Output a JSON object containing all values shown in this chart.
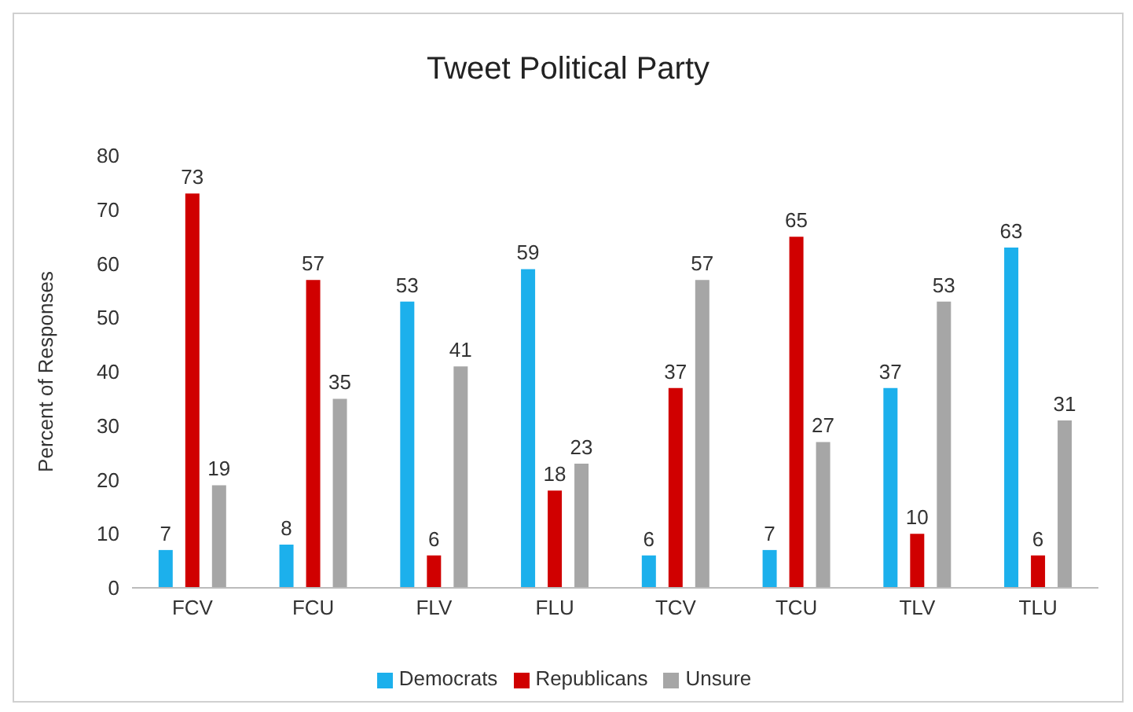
{
  "chart_data": {
    "type": "bar",
    "title": "Tweet Political Party",
    "ylabel": "Percent of Responses",
    "categories": [
      "FCV",
      "FCU",
      "FLV",
      "FLU",
      "TCV",
      "TCU",
      "TLV",
      "TLU"
    ],
    "series": [
      {
        "name": "Democrats",
        "color": "#1cb0ec",
        "values": [
          7,
          8,
          53,
          59,
          6,
          7,
          37,
          63
        ]
      },
      {
        "name": "Republicans",
        "color": "#d00000",
        "values": [
          73,
          57,
          6,
          18,
          37,
          65,
          10,
          6
        ]
      },
      {
        "name": "Unsure",
        "color": "#a6a6a6",
        "values": [
          19,
          35,
          41,
          23,
          57,
          27,
          53,
          31
        ]
      }
    ],
    "ylim": [
      0,
      80
    ],
    "yticks": [
      0,
      10,
      20,
      30,
      40,
      50,
      60,
      70,
      80
    ],
    "data_labels": true,
    "legend": "bottom"
  }
}
